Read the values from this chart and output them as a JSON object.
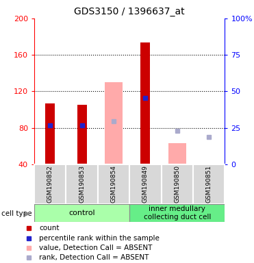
{
  "title": "GDS3150 / 1396637_at",
  "samples": [
    "GSM190852",
    "GSM190853",
    "GSM190854",
    "GSM190849",
    "GSM190850",
    "GSM190851"
  ],
  "ylim_left": [
    40,
    200
  ],
  "ylim_right": [
    0,
    100
  ],
  "yticks_left": [
    40,
    80,
    120,
    160,
    200
  ],
  "yticks_right": [
    0,
    25,
    50,
    75,
    100
  ],
  "yticklabels_right": [
    "0",
    "25",
    "50",
    "75",
    "100%"
  ],
  "gridlines": [
    80,
    120,
    160
  ],
  "red_values": [
    107,
    105,
    null,
    174,
    null,
    null
  ],
  "blue_values": [
    83,
    83,
    null,
    113,
    null,
    null
  ],
  "pink_values": [
    null,
    null,
    130,
    null,
    63,
    null
  ],
  "lightblue_values": [
    null,
    null,
    87,
    null,
    77,
    70
  ],
  "red_color": "#cc0000",
  "blue_color": "#2222cc",
  "pink_color": "#ffaaaa",
  "lightblue_color": "#aaaacc",
  "bar_width": 0.55,
  "control_color": "#aaffaa",
  "imcd_color": "#66ee88",
  "gray_color": "#d8d8d8"
}
